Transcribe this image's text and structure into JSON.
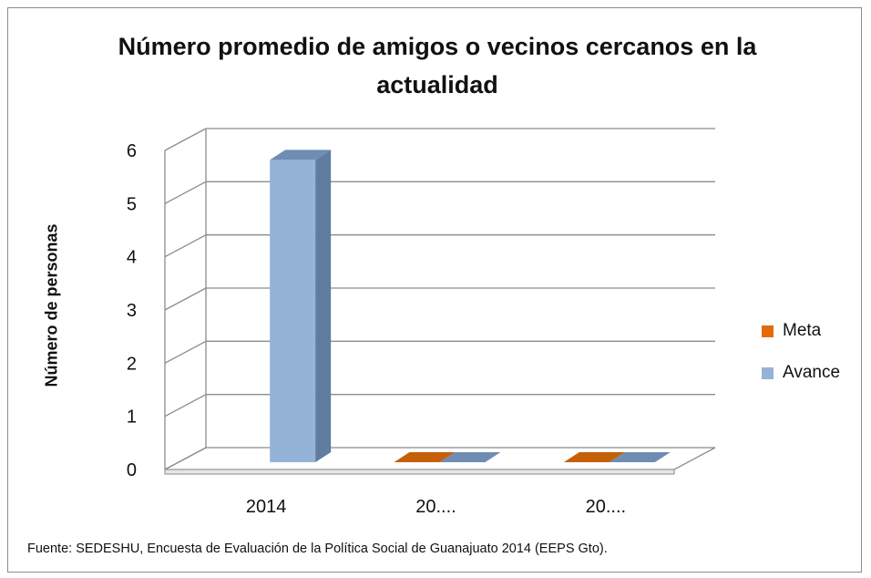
{
  "chart_data": {
    "type": "bar",
    "title": "Número promedio de amigos o vecinos cercanos en la actualidad",
    "ylabel": "Número de personas",
    "xlabel": "",
    "categories": [
      "2014",
      "20....",
      "20...."
    ],
    "series": [
      {
        "name": "Meta",
        "values": [
          null,
          0,
          0
        ]
      },
      {
        "name": "Avance",
        "values": [
          5.8,
          0,
          0
        ]
      }
    ],
    "ylim": [
      0,
      6
    ],
    "yticks": [
      0,
      1,
      2,
      3,
      4,
      5,
      6
    ],
    "grid": true,
    "legend": "right",
    "three_d": true,
    "colors": {
      "Meta": "#e36c09",
      "Avance": "#95b3d7",
      "Avance_side": "#607c9f",
      "Avance_top": "#6f8db3"
    }
  },
  "source_note": "Fuente: SEDESHU, Encuesta de Evaluación de la Política Social de Guanajuato 2014 (EEPS Gto)."
}
